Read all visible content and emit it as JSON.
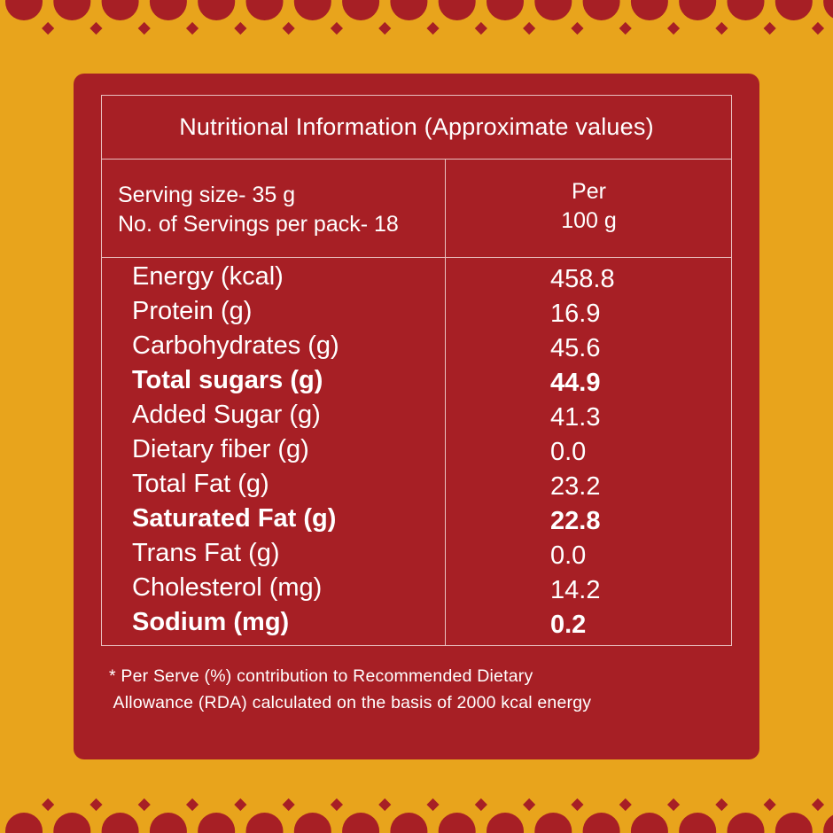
{
  "colors": {
    "background": "#e8a41c",
    "panel": "#a71f25",
    "text": "#ffffff"
  },
  "table": {
    "title": "Nutritional Information (Approximate values)",
    "serving_size": "Serving size- 35 g",
    "servings_per_pack": "No. of Servings per pack- 18",
    "per_label": "Per",
    "per_amount": "100 g",
    "rows": [
      {
        "label": "Energy (kcal)",
        "value": "458.8",
        "bold": false
      },
      {
        "label": "Protein (g)",
        "value": "16.9",
        "bold": false
      },
      {
        "label": "Carbohydrates (g)",
        "value": "45.6",
        "bold": false
      },
      {
        "label": "Total sugars (g)",
        "value": "44.9",
        "bold": true
      },
      {
        "label": "Added Sugar (g)",
        "value": "41.3",
        "bold": false
      },
      {
        "label": "Dietary fiber (g)",
        "value": "0.0",
        "bold": false
      },
      {
        "label": "Total Fat (g)",
        "value": "23.2",
        "bold": false
      },
      {
        "label": "Saturated Fat (g)",
        "value": "22.8",
        "bold": true
      },
      {
        "label": "Trans Fat (g)",
        "value": "0.0",
        "bold": false
      },
      {
        "label": "Cholesterol (mg)",
        "value": "14.2",
        "bold": false
      },
      {
        "label": "Sodium (mg)",
        "value": "0.2",
        "bold": true
      }
    ]
  },
  "footnote": {
    "line1": "* Per Serve (%) contribution to Recommended Dietary",
    "line2": " Allowance (RDA) calculated on the basis of 2000 kcal energy"
  }
}
